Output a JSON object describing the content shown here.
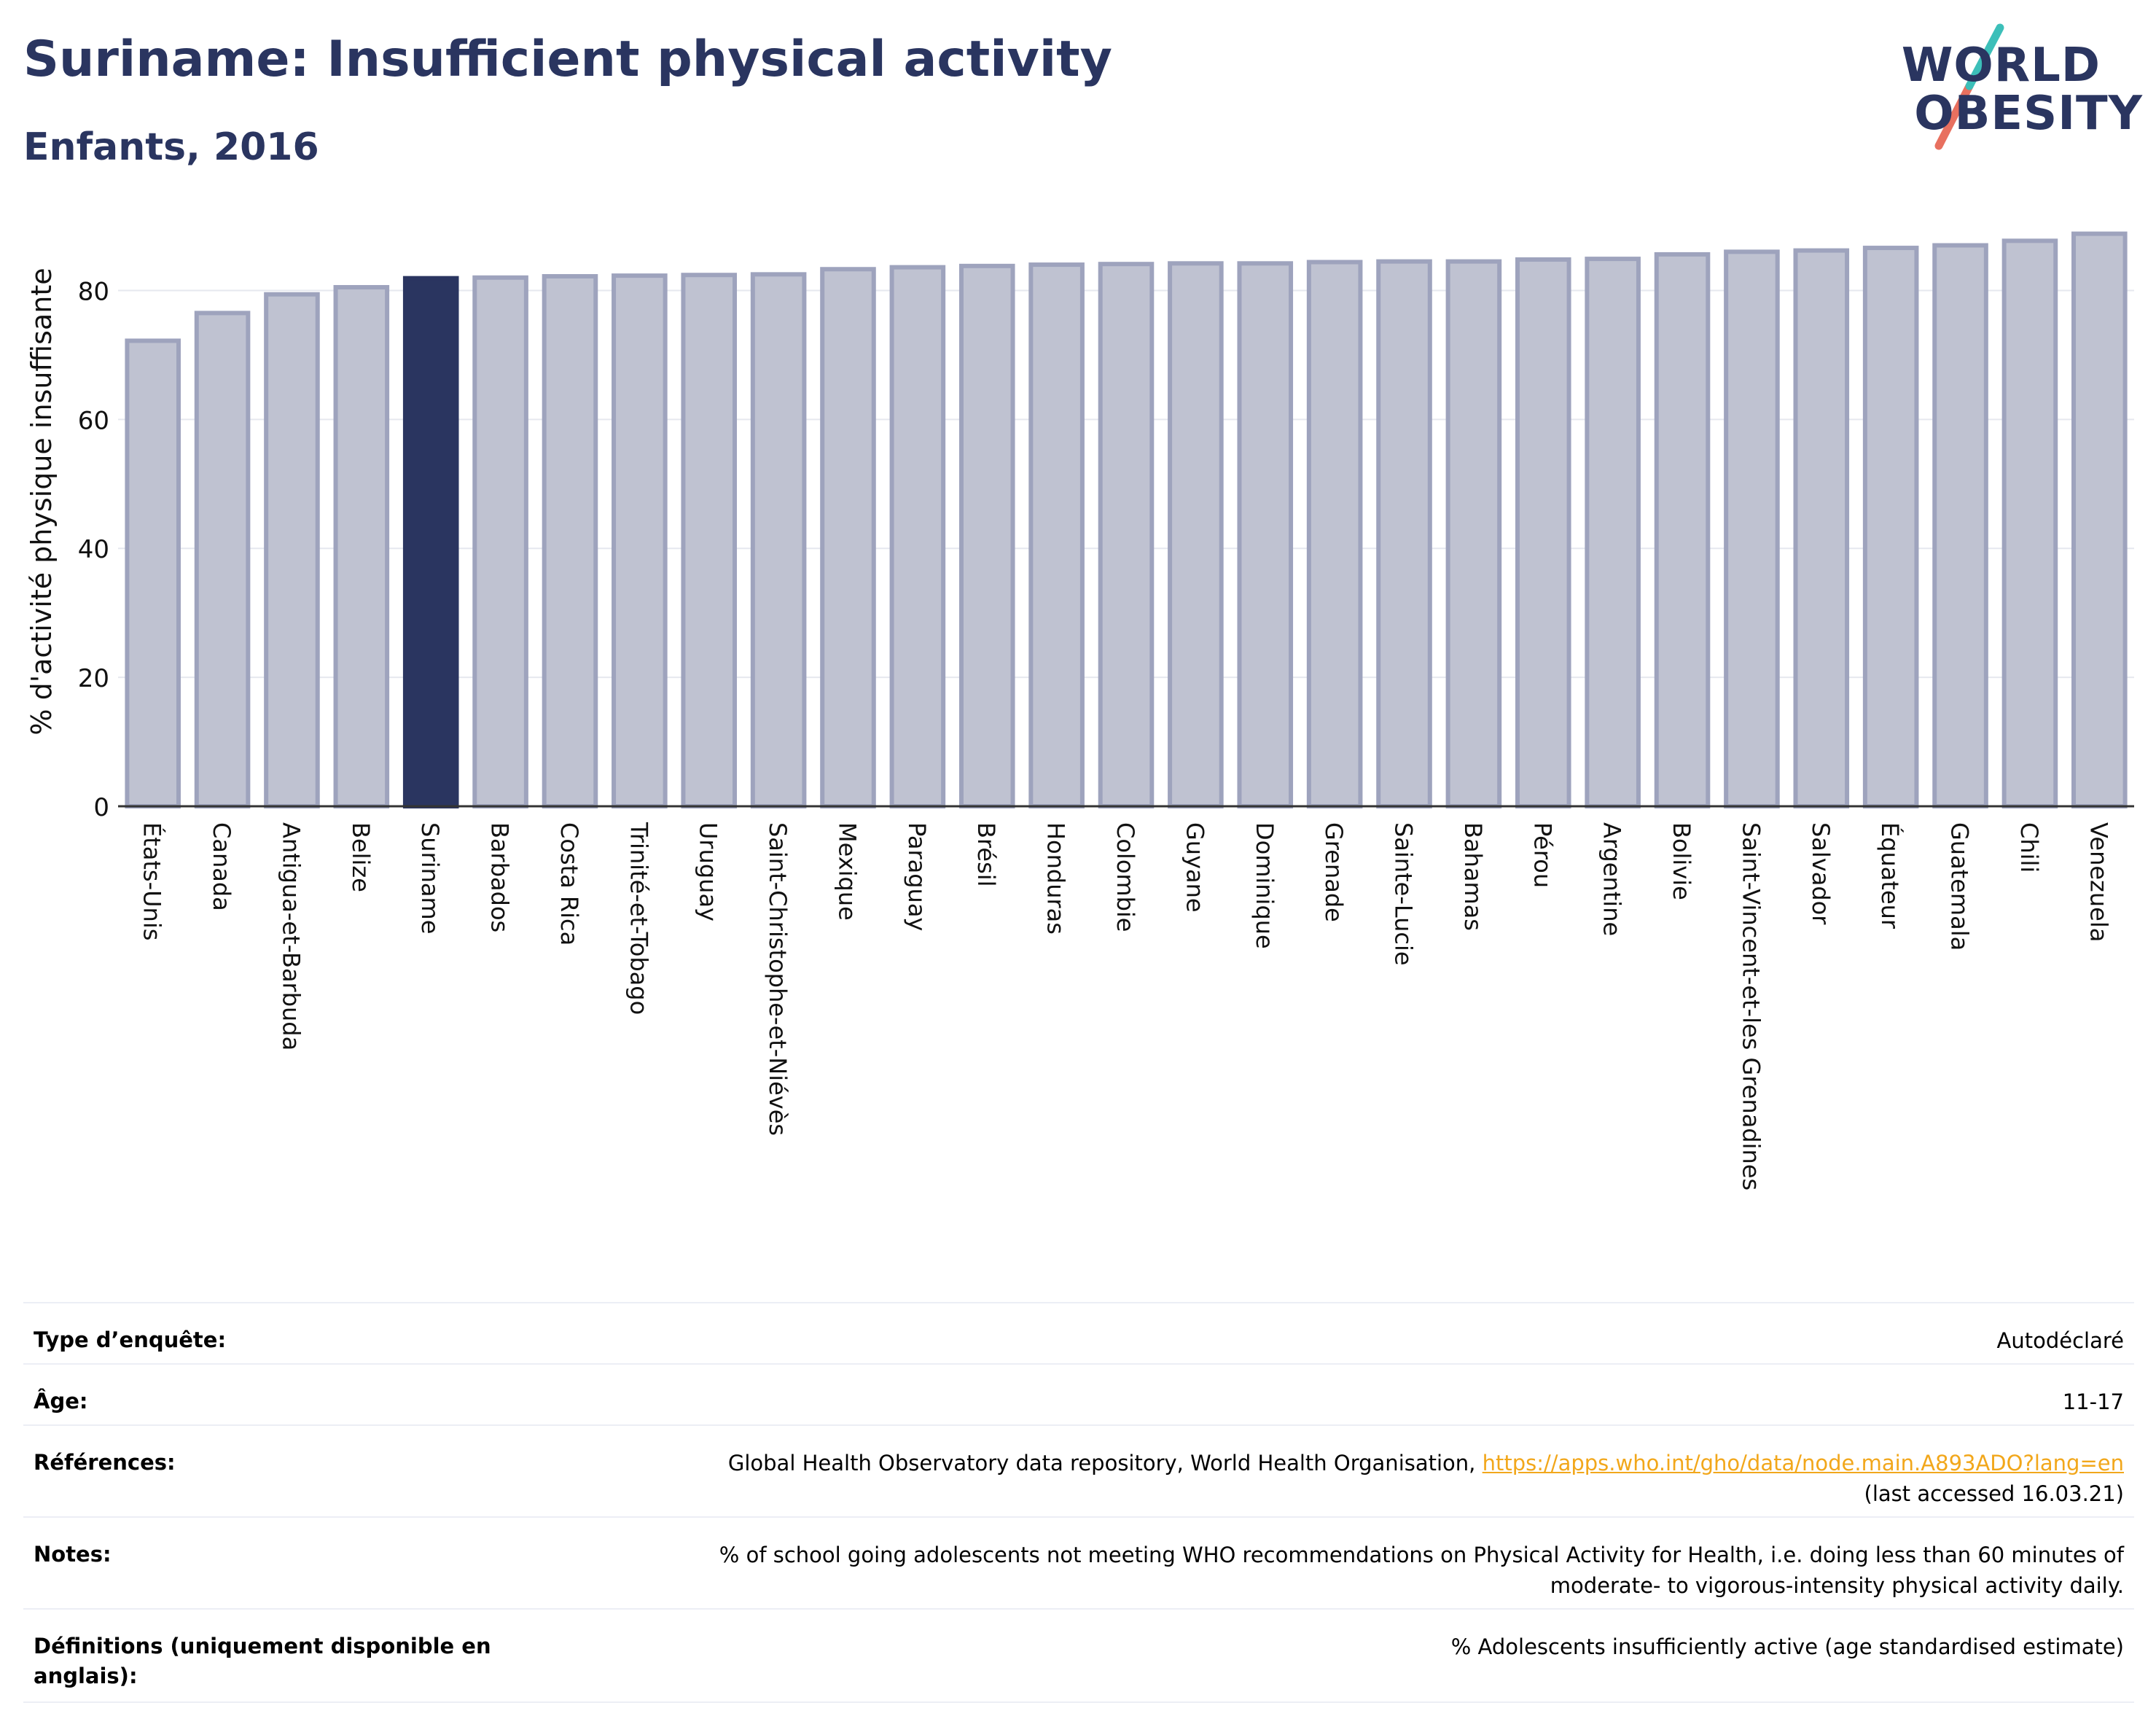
{
  "header": {
    "title": "Suriname: Insufficient physical activity",
    "subtitle": "Enfants, 2016"
  },
  "logo": {
    "line1": "WORLD",
    "line2": "OBESITY",
    "alt": "World Obesity"
  },
  "colors": {
    "highlight": "#2a3560",
    "bar": "#bfc2d1",
    "bar_border": "#9ea3bd",
    "title": "#2a3560",
    "link": "#f2a71b"
  },
  "chart_data": {
    "type": "bar",
    "title": "",
    "xlabel": "",
    "ylabel": "% d'activité physique insuffisante",
    "ylim": [
      0,
      90
    ],
    "yticks": [
      0,
      20,
      40,
      60,
      80
    ],
    "grid": true,
    "highlight": "Suriname",
    "categories": [
      "États-Unis",
      "Canada",
      "Antigua-et-Barbuda",
      "Belize",
      "Suriname",
      "Barbados",
      "Costa Rica",
      "Trinité-et-Tobago",
      "Uruguay",
      "Saint-Christophe-et-Niévès",
      "Mexique",
      "Paraguay",
      "Brésil",
      "Honduras",
      "Colombie",
      "Guyane",
      "Dominique",
      "Grenade",
      "Sainte-Lucie",
      "Bahamas",
      "Pérou",
      "Argentine",
      "Bolivie",
      "Saint-Vincent-et-les Grenadines",
      "Salvador",
      "Équateur",
      "Guatemala",
      "Chili",
      "Venezuela"
    ],
    "values": [
      72.2,
      76.5,
      79.4,
      80.5,
      81.9,
      82.0,
      82.2,
      82.3,
      82.4,
      82.5,
      83.3,
      83.6,
      83.8,
      84.0,
      84.1,
      84.2,
      84.2,
      84.4,
      84.5,
      84.5,
      84.8,
      84.9,
      85.6,
      86.0,
      86.2,
      86.6,
      87.0,
      87.7,
      88.8
    ]
  },
  "table": {
    "survey_label": "Type d’enquête:",
    "survey_value": "Autodéclaré",
    "age_label": "Âge:",
    "age_value": "11-17",
    "refs_label": "Références:",
    "refs_text": "Global Health Observatory data repository, World Health Organisation, ",
    "refs_link": "https://apps.who.int/gho/data/node.main.A893ADO?lang=en",
    "refs_accessed": "(last accessed 16.03.21)",
    "notes_label": "Notes:",
    "notes_line1": "% of school going adolescents not meeting WHO recommendations on Physical Activity for Health, i.e. doing less than 60 minutes of",
    "notes_line2": "moderate- to vigorous-intensity physical activity daily.",
    "defs_label": "Définitions (uniquement disponible en anglais):",
    "defs_value": "% Adolescents insufficiently active (age standardised estimate)"
  }
}
